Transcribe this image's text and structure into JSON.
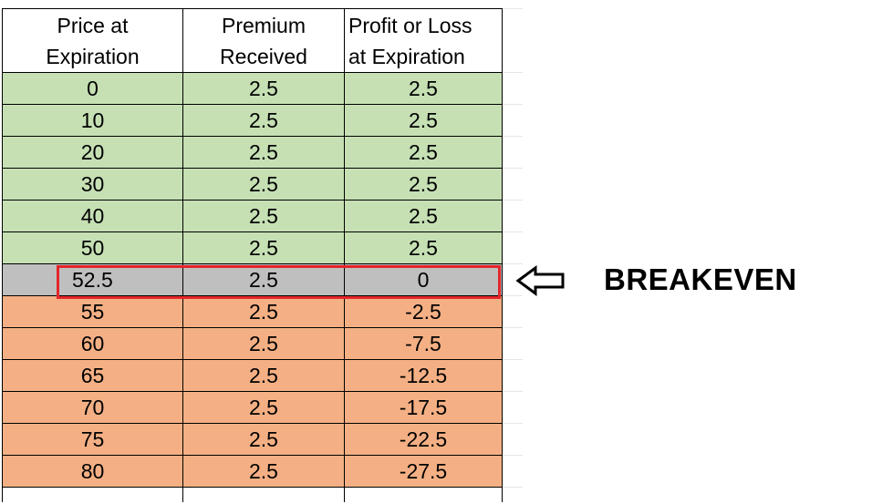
{
  "table": {
    "headers": [
      [
        "Price at",
        "Expiration"
      ],
      [
        "Premium",
        "Received"
      ],
      [
        "Profit or Loss",
        "at Expiration"
      ]
    ],
    "rows": [
      {
        "price": "0",
        "premium": "2.5",
        "pl": "2.5",
        "zone": "green"
      },
      {
        "price": "10",
        "premium": "2.5",
        "pl": "2.5",
        "zone": "green"
      },
      {
        "price": "20",
        "premium": "2.5",
        "pl": "2.5",
        "zone": "green"
      },
      {
        "price": "30",
        "premium": "2.5",
        "pl": "2.5",
        "zone": "green"
      },
      {
        "price": "40",
        "premium": "2.5",
        "pl": "2.5",
        "zone": "green"
      },
      {
        "price": "50",
        "premium": "2.5",
        "pl": "2.5",
        "zone": "green"
      },
      {
        "price": "52.5",
        "premium": "2.5",
        "pl": "0",
        "zone": "gray"
      },
      {
        "price": "55",
        "premium": "2.5",
        "pl": "-2.5",
        "zone": "orange"
      },
      {
        "price": "60",
        "premium": "2.5",
        "pl": "-7.5",
        "zone": "orange"
      },
      {
        "price": "65",
        "premium": "2.5",
        "pl": "-12.5",
        "zone": "orange"
      },
      {
        "price": "70",
        "premium": "2.5",
        "pl": "-17.5",
        "zone": "orange"
      },
      {
        "price": "75",
        "premium": "2.5",
        "pl": "-22.5",
        "zone": "orange"
      },
      {
        "price": "80",
        "premium": "2.5",
        "pl": "-27.5",
        "zone": "orange"
      }
    ]
  },
  "callout": {
    "label": "BREAKEVEN",
    "icon": "left-arrow-outline-icon"
  },
  "colors": {
    "profit_zone": "#c6e0b4",
    "breakeven_zone": "#bfbfbf",
    "loss_zone": "#f4b084",
    "highlight_border": "#e3262a"
  }
}
